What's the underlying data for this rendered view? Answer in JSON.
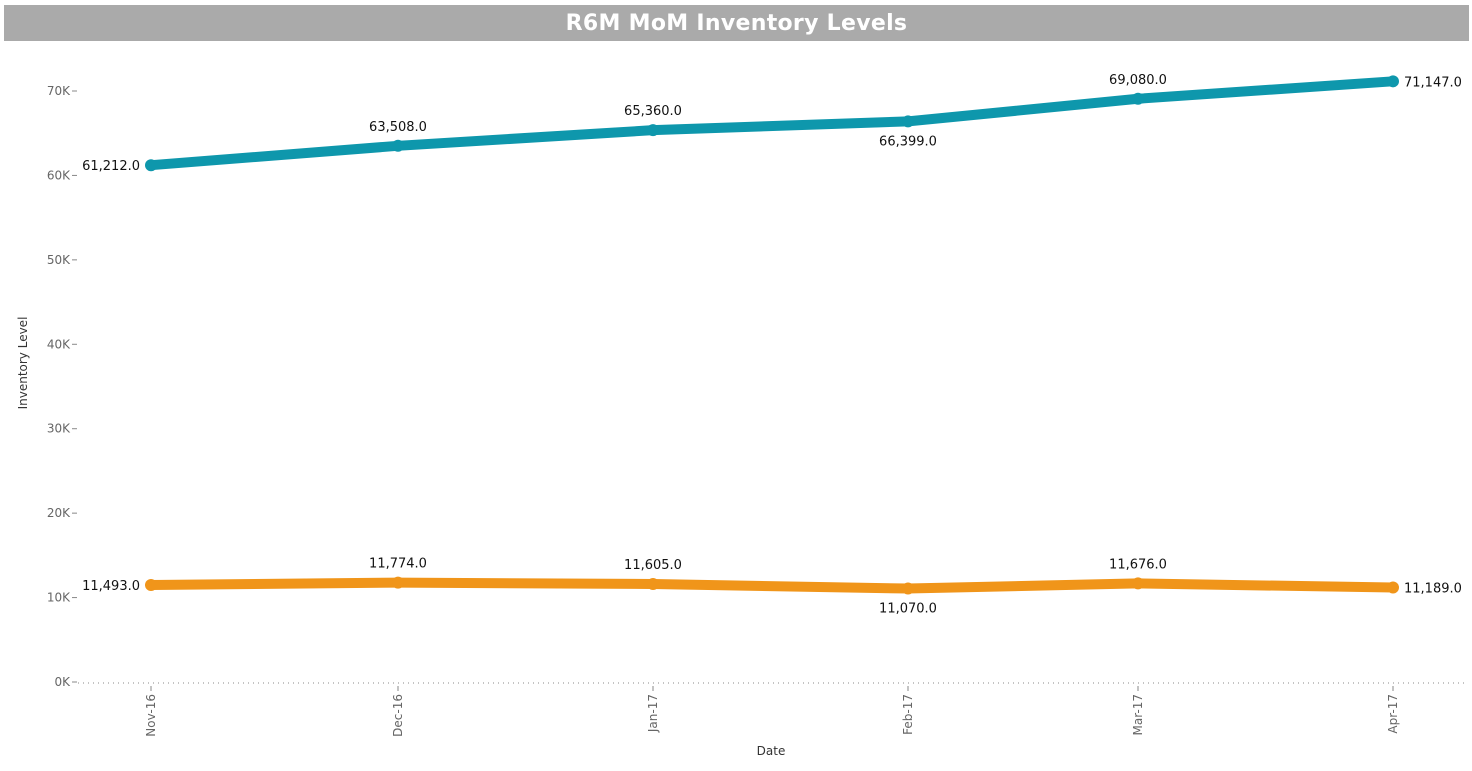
{
  "chart_data": {
    "type": "line",
    "title": "R6M MoM Inventory Levels",
    "xlabel": "Date",
    "ylabel": "Inventory Level",
    "categories": [
      "Nov-16",
      "Dec-16",
      "Jan-17",
      "Feb-17",
      "Mar-17",
      "Apr-17"
    ],
    "ylim": [
      0,
      75000
    ],
    "yticks": [
      0,
      10000,
      20000,
      30000,
      40000,
      50000,
      60000,
      70000
    ],
    "ytick_labels": [
      "0K",
      "10K",
      "20K",
      "30K",
      "40K",
      "50K",
      "60K",
      "70K"
    ],
    "grid": false,
    "legend": "none",
    "series": [
      {
        "color": "#0e97ac",
        "values": [
          61212,
          63508,
          65360,
          66399,
          69080,
          71147
        ],
        "labels": [
          "61,212.0",
          "63,508.0",
          "65,360.0",
          "66,399.0",
          "69,080.0",
          "71,147.0"
        ],
        "label_positions": [
          "left",
          "above",
          "above",
          "below",
          "above",
          "right"
        ]
      },
      {
        "color": "#f0951a",
        "values": [
          11493,
          11774,
          11605,
          11070,
          11676,
          11189
        ],
        "labels": [
          "11,493.0",
          "11,774.0",
          "11,605.0",
          "11,070.0",
          "11,676.0",
          "11,189.0"
        ],
        "label_positions": [
          "left",
          "above",
          "above",
          "below",
          "above",
          "right"
        ]
      }
    ]
  }
}
